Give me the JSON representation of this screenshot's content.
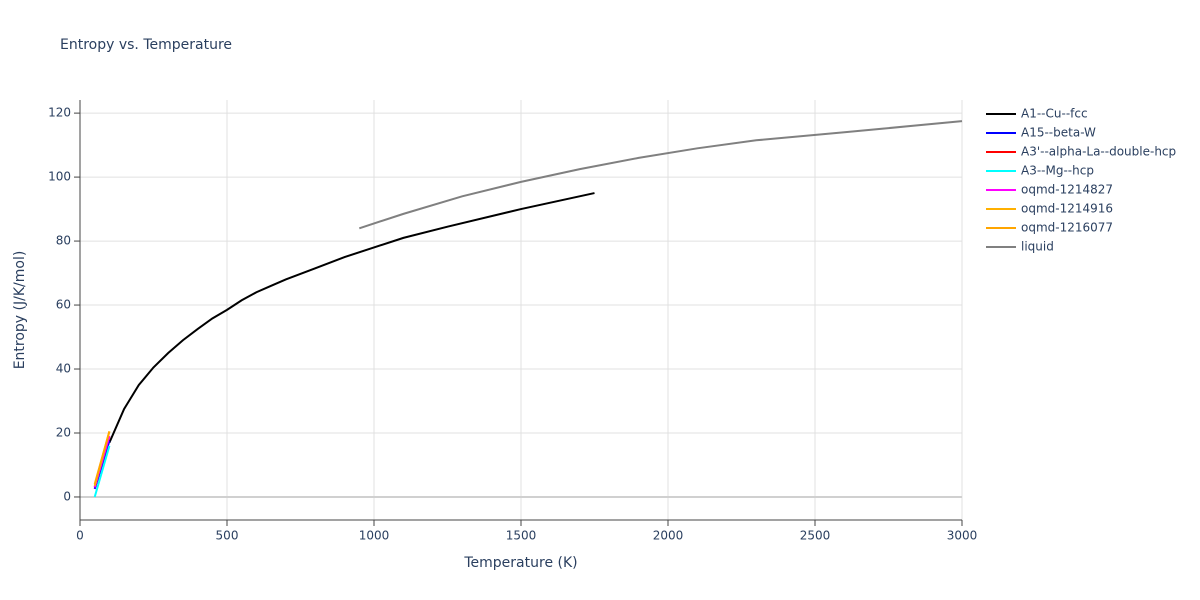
{
  "chart_data": {
    "type": "line",
    "title": "Entropy vs. Temperature",
    "x_label": "Temperature (K)",
    "y_label": "Entropy (J/K/mol)",
    "xlim": [
      0,
      3000
    ],
    "ylim": [
      -7.2,
      124.1
    ],
    "xticks": [
      0,
      500,
      1000,
      1500,
      2000,
      2500,
      3000
    ],
    "yticks": [
      0,
      20,
      40,
      60,
      80,
      100,
      120
    ],
    "grid": true,
    "legend": "right",
    "series": [
      {
        "name": "A1--Cu--fcc",
        "color": "#000000",
        "x": [
          100,
          150,
          200,
          250,
          300,
          350,
          400,
          450,
          500,
          550,
          600,
          650,
          700,
          800,
          900,
          1000,
          1100,
          1250,
          1500,
          1750
        ],
        "values": [
          17,
          27.5,
          35,
          40.5,
          45,
          49,
          52.5,
          55.8,
          58.5,
          61.5,
          64,
          66,
          68,
          71.5,
          75,
          78,
          81,
          84.5,
          90,
          95
        ]
      },
      {
        "name": "A15--beta-W",
        "color": "#0000ff",
        "x": [
          50,
          100
        ],
        "values": [
          2.5,
          17.5
        ]
      },
      {
        "name": "A3'--alpha-La--double-hcp",
        "color": "#ff0000",
        "x": [
          50,
          100
        ],
        "values": [
          3,
          19
        ]
      },
      {
        "name": "A3--Mg--hcp",
        "color": "#00ffff",
        "x": [
          50,
          100
        ],
        "values": [
          0,
          16
        ]
      },
      {
        "name": "oqmd-1214827",
        "color": "#ff00ff",
        "x": [
          50,
          100
        ],
        "values": [
          3,
          19
        ]
      },
      {
        "name": "oqmd-1214916",
        "color": "#ffb000",
        "x": [
          50,
          100
        ],
        "values": [
          3.5,
          20.5
        ]
      },
      {
        "name": "oqmd-1216077",
        "color": "#ffa500",
        "x": [
          50,
          100
        ],
        "values": [
          4,
          20.5
        ]
      },
      {
        "name": "liquid",
        "color": "#808080",
        "x": [
          950,
          1100,
          1300,
          1500,
          1700,
          1900,
          2100,
          2300,
          2600,
          3000
        ],
        "values": [
          84,
          88.5,
          94,
          98.5,
          102.5,
          106,
          109,
          111.5,
          114,
          117.5
        ]
      }
    ]
  }
}
